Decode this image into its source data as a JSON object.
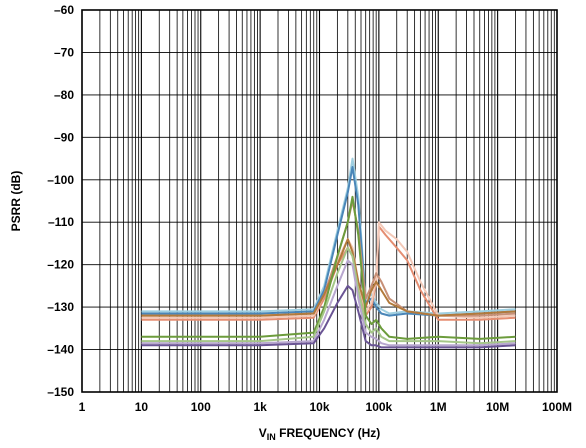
{
  "chart_data": {
    "type": "line",
    "title": "",
    "xlabel": {
      "main": "V",
      "sub": "IN",
      "rest": " FREQUENCY (Hz)"
    },
    "ylabel": "PSRR (dB)",
    "x_scale": "log",
    "xlim": [
      1,
      100000000
    ],
    "ylim": [
      -150,
      -60
    ],
    "grid": true,
    "x_ticks": [
      {
        "value": 1,
        "label": "1"
      },
      {
        "value": 10,
        "label": "10"
      },
      {
        "value": 100,
        "label": "100"
      },
      {
        "value": 1000,
        "label": "1k"
      },
      {
        "value": 10000,
        "label": "10k"
      },
      {
        "value": 100000,
        "label": "100k"
      },
      {
        "value": 1000000,
        "label": "1M"
      },
      {
        "value": 10000000,
        "label": "10M"
      },
      {
        "value": 100000000,
        "label": "100M"
      }
    ],
    "y_ticks": [
      {
        "value": -60,
        "label": "–60"
      },
      {
        "value": -70,
        "label": "–70"
      },
      {
        "value": -80,
        "label": "–80"
      },
      {
        "value": -90,
        "label": "–90"
      },
      {
        "value": -100,
        "label": "–100"
      },
      {
        "value": -110,
        "label": "–110"
      },
      {
        "value": -120,
        "label": "–120"
      },
      {
        "value": -130,
        "label": "–130"
      },
      {
        "value": -140,
        "label": "–140"
      },
      {
        "value": -150,
        "label": "–150"
      }
    ],
    "series": [
      {
        "color": "#9fcfe0",
        "x": [
          10,
          1000,
          8000,
          12000,
          20000,
          30000,
          36000,
          45000,
          60000,
          75000,
          90000,
          110000,
          150000,
          300000,
          1000000,
          5000000,
          20000000
        ],
        "y": [
          -131,
          -131,
          -130.5,
          -125,
          -112,
          -102,
          -95,
          -104,
          -128,
          -127,
          -129,
          -130.5,
          -131.5,
          -131,
          -131.5,
          -131,
          -130.5
        ]
      },
      {
        "color": "#4a86b8",
        "x": [
          10,
          1000,
          8000,
          12000,
          20000,
          30000,
          36000,
          45000,
          60000,
          75000,
          90000,
          110000,
          150000,
          300000,
          1000000,
          5000000,
          20000000
        ],
        "y": [
          -131.5,
          -131.5,
          -131,
          -126,
          -113,
          -103,
          -97,
          -106,
          -129,
          -128,
          -130,
          -131.5,
          -132,
          -131.5,
          -132,
          -131.5,
          -131
        ]
      },
      {
        "color": "#e58e72",
        "x": [
          10,
          1000,
          8000,
          12000,
          20000,
          30000,
          36000,
          45000,
          60000,
          75000,
          90000,
          100000,
          130000,
          200000,
          300000,
          500000,
          1000000,
          5000000,
          20000000
        ],
        "y": [
          -133,
          -133,
          -132.5,
          -128,
          -120,
          -116,
          -118,
          -125,
          -132,
          -130,
          -124,
          -111,
          -113,
          -116,
          -119,
          -126,
          -133,
          -133,
          -132.5
        ]
      },
      {
        "color": "#f3c9b8",
        "x": [
          10,
          1000,
          8000,
          12000,
          20000,
          30000,
          36000,
          45000,
          60000,
          75000,
          90000,
          100000,
          130000,
          200000,
          300000,
          500000,
          1000000,
          5000000,
          20000000
        ],
        "y": [
          -132.5,
          -132.5,
          -132,
          -127,
          -119,
          -114,
          -116,
          -124,
          -131,
          -129,
          -123,
          -110,
          -112,
          -114,
          -117,
          -124,
          -132,
          -132.5,
          -132
        ]
      },
      {
        "color": "#c79077",
        "x": [
          10,
          1000,
          8000,
          12000,
          20000,
          30000,
          36000,
          45000,
          60000,
          75000,
          90000,
          110000,
          150000,
          300000,
          1000000,
          5000000,
          20000000
        ],
        "y": [
          -132,
          -132,
          -131.5,
          -127,
          -118,
          -110,
          -105,
          -112,
          -128,
          -125,
          -122,
          -124,
          -128,
          -131,
          -132,
          -132,
          -131.5
        ]
      },
      {
        "color": "#b27a3c",
        "x": [
          10,
          1000,
          8000,
          12000,
          20000,
          30000,
          36000,
          45000,
          60000,
          75000,
          90000,
          110000,
          150000,
          300000,
          1000000,
          5000000,
          20000000
        ],
        "y": [
          -132,
          -132,
          -131.5,
          -127,
          -120,
          -114,
          -117,
          -124,
          -130,
          -126,
          -124,
          -126,
          -129,
          -131,
          -132,
          -131.5,
          -131
        ]
      },
      {
        "color": "#6c9c3c",
        "x": [
          10,
          1000,
          8000,
          12000,
          20000,
          30000,
          36000,
          45000,
          60000,
          75000,
          90000,
          110000,
          150000,
          300000,
          1000000,
          5000000,
          20000000
        ],
        "y": [
          -137,
          -137,
          -136,
          -130,
          -118,
          -110,
          -104,
          -113,
          -132,
          -134,
          -133,
          -135,
          -137,
          -137.5,
          -137,
          -137.5,
          -137
        ]
      },
      {
        "color": "#a5c688",
        "x": [
          10,
          1000,
          8000,
          12000,
          20000,
          30000,
          36000,
          45000,
          60000,
          75000,
          90000,
          110000,
          150000,
          300000,
          1000000,
          5000000,
          20000000
        ],
        "y": [
          -138,
          -138,
          -137,
          -131,
          -122,
          -116,
          -118,
          -126,
          -134,
          -136,
          -135,
          -137,
          -138,
          -138,
          -138,
          -138.5,
          -138
        ]
      },
      {
        "color": "#b8a7cf",
        "x": [
          10,
          1000,
          8000,
          12000,
          20000,
          30000,
          36000,
          45000,
          60000,
          75000,
          90000,
          110000,
          150000,
          300000,
          1000000,
          5000000,
          20000000
        ],
        "y": [
          -138.5,
          -138.5,
          -138,
          -133,
          -125,
          -119,
          -120,
          -128,
          -136,
          -137,
          -137.5,
          -138.5,
          -139,
          -139,
          -139,
          -139,
          -138.5
        ]
      },
      {
        "color": "#6a5494",
        "x": [
          10,
          1000,
          8000,
          12000,
          20000,
          30000,
          36000,
          45000,
          60000,
          75000,
          90000,
          110000,
          150000,
          300000,
          1000000,
          5000000,
          20000000
        ],
        "y": [
          -139,
          -139,
          -138.5,
          -135,
          -129,
          -125,
          -126,
          -131,
          -138,
          -139,
          -139,
          -139.5,
          -139.5,
          -139.5,
          -139.5,
          -139.5,
          -139
        ]
      }
    ]
  }
}
